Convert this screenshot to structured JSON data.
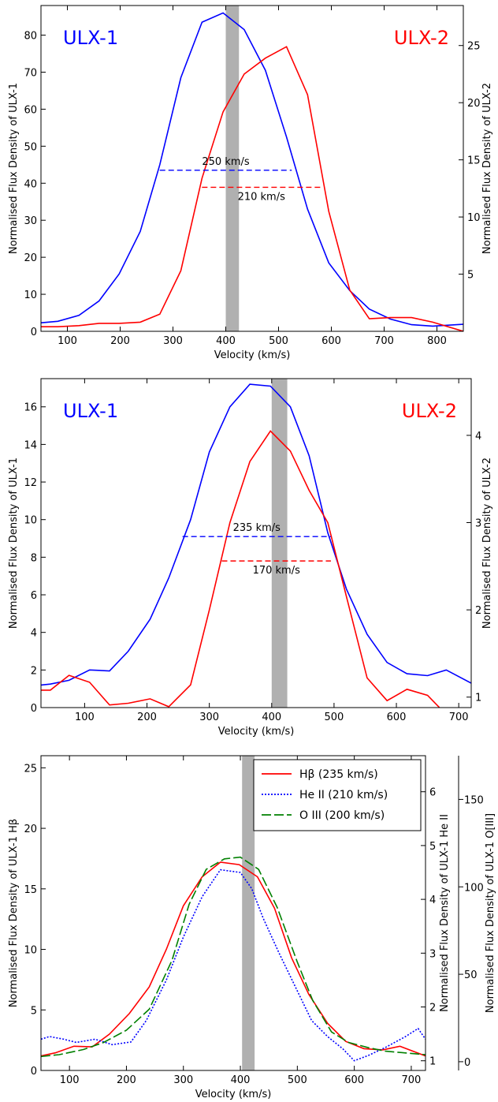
{
  "chart_data": [
    {
      "type": "line",
      "xlabel": "Velocity (km/s)",
      "ylabel_left": "Normalised Flux Density of ULX-1",
      "ylabel_right": "Normalised Flux Density of ULX-2",
      "xlim": [
        50,
        850
      ],
      "ylim_left": [
        0,
        88
      ],
      "ylim_right": [
        0,
        28.5
      ],
      "xticks": [
        "100",
        "200",
        "300",
        "400",
        "500",
        "600",
        "700",
        "800"
      ],
      "yticks_left": [
        "0",
        "10",
        "20",
        "30",
        "40",
        "50",
        "60",
        "70",
        "80"
      ],
      "yticks_right": [
        "5",
        "10",
        "15",
        "20",
        "25"
      ],
      "shaded_band": [
        400,
        425
      ],
      "grid": false,
      "labels": {
        "left_name": "ULX-1",
        "right_name": "ULX-2"
      },
      "series": [
        {
          "name": "ULX-1",
          "color": "#0000ff",
          "axis": "left",
          "x": [
            50,
            82,
            122,
            160,
            198,
            238,
            275,
            315,
            355,
            395,
            435,
            475,
            515,
            555,
            595,
            635,
            672,
            712,
            752,
            792,
            850
          ],
          "y": [
            2.3,
            2.7,
            4.3,
            8.2,
            15.5,
            27,
            45,
            68.5,
            83.5,
            86,
            81.5,
            70.5,
            52.5,
            33,
            18.5,
            11,
            6,
            3.3,
            1.8,
            1.4,
            1.9
          ]
        },
        {
          "name": "ULX-2",
          "color": "#ff0000",
          "axis": "right",
          "x": [
            50,
            82,
            122,
            160,
            198,
            238,
            275,
            315,
            355,
            395,
            435,
            475,
            515,
            555,
            595,
            635,
            672,
            712,
            752,
            792,
            850
          ],
          "y": [
            0.4,
            0.4,
            0.5,
            0.7,
            0.7,
            0.8,
            1.5,
            5.3,
            13.4,
            19.2,
            22.5,
            23.9,
            24.9,
            20.7,
            10.5,
            3.6,
            1.1,
            1.2,
            1.2,
            0.8,
            0
          ]
        }
      ],
      "fwhm": [
        {
          "label": "250 km/s",
          "color": "#0000ff",
          "axis": "left",
          "y": 43.5,
          "x": [
            275,
            525
          ]
        },
        {
          "label": "210 km/s",
          "color": "#ff0000",
          "axis": "right",
          "y": 12.6,
          "x": [
            355,
            580
          ]
        }
      ]
    },
    {
      "type": "line",
      "xlabel": "Velocity (km/s)",
      "ylabel_left": "Normalised Flux Density of ULX-1",
      "ylabel_right": "Normalised Flux Density of ULX-2",
      "xlim": [
        30,
        720
      ],
      "ylim_left": [
        0,
        17.5
      ],
      "ylim_right": [
        0.88,
        4.65
      ],
      "xticks": [
        "100",
        "200",
        "300",
        "400",
        "500",
        "600",
        "700"
      ],
      "yticks_left": [
        "0",
        "2",
        "4",
        "6",
        "8",
        "10",
        "12",
        "14",
        "16"
      ],
      "yticks_right": [
        "1",
        "2",
        "3",
        "4"
      ],
      "shaded_band": [
        400,
        425
      ],
      "grid": false,
      "labels": {
        "left_name": "ULX-1",
        "right_name": "ULX-2"
      },
      "series": [
        {
          "name": "ULX-1",
          "color": "#0000ff",
          "axis": "left",
          "x": [
            30,
            45,
            75,
            108,
            140,
            170,
            205,
            235,
            270,
            300,
            333,
            365,
            398,
            430,
            460,
            490,
            520,
            553,
            585,
            617,
            650,
            680,
            720
          ],
          "y": [
            1.2,
            1.25,
            1.45,
            2.0,
            1.95,
            3.0,
            4.7,
            6.9,
            10.0,
            13.6,
            16.0,
            17.2,
            17.1,
            16.0,
            13.4,
            9.3,
            6.3,
            3.9,
            2.4,
            1.8,
            1.7,
            2.0,
            1.3
          ]
        },
        {
          "name": "ULX-2",
          "color": "#ff0000",
          "axis": "right",
          "x": [
            30,
            45,
            75,
            108,
            140,
            170,
            205,
            235,
            270,
            300,
            333,
            365,
            398,
            430,
            460,
            490,
            520,
            553,
            585,
            617,
            650,
            680
          ],
          "y": [
            1.08,
            1.08,
            1.25,
            1.17,
            0.91,
            0.93,
            0.98,
            0.89,
            1.14,
            2.0,
            3.0,
            3.7,
            4.05,
            3.82,
            3.37,
            3.0,
            2.15,
            1.22,
            0.96,
            1.09,
            1.02,
            0.8
          ]
        }
      ],
      "fwhm": [
        {
          "label": "235 km/s",
          "color": "#0000ff",
          "axis": "left",
          "y": 9.1,
          "x": [
            257,
            495
          ]
        },
        {
          "label": "170 km/s",
          "color": "#ff0000",
          "axis": "left",
          "y": 7.8,
          "x": [
            320,
            495
          ]
        }
      ]
    },
    {
      "type": "line",
      "xlabel": "Velocity (km/s)",
      "ylabel_left": "Normalised Flux Density of ULX-1 Hβ",
      "ylabel_mid": "Normalised Flux Density of ULX-1 He II",
      "ylabel_right": "Normalised Flux Density of ULX-1 O[III]",
      "xlim": [
        50,
        725
      ],
      "ylim_left": [
        0,
        26
      ],
      "ylim_mid": [
        0.82,
        6.67
      ],
      "ylim_right": [
        -5,
        175
      ],
      "xticks": [
        "100",
        "200",
        "300",
        "400",
        "500",
        "600",
        "700"
      ],
      "yticks_left": [
        "0",
        "5",
        "10",
        "15",
        "20",
        "25"
      ],
      "yticks_mid": [
        "1",
        "2",
        "3",
        "4",
        "5",
        "6"
      ],
      "yticks_right": [
        "0",
        "50",
        "100",
        "150"
      ],
      "shaded_band": [
        403,
        425
      ],
      "grid": false,
      "legend": {
        "placement": "top-right"
      },
      "series": [
        {
          "name": "Hβ (235 km/s)",
          "color": "#ff0000",
          "style": "solid",
          "axis": "left",
          "x": [
            50,
            75,
            108,
            140,
            170,
            205,
            240,
            270,
            300,
            333,
            365,
            398,
            430,
            460,
            490,
            520,
            553,
            585,
            617,
            650,
            680,
            725
          ],
          "y": [
            1.2,
            1.45,
            2.0,
            1.95,
            3.0,
            4.7,
            6.9,
            10.0,
            13.6,
            16.0,
            17.2,
            17.0,
            16.0,
            13.4,
            9.3,
            6.3,
            3.9,
            2.4,
            1.8,
            1.7,
            2.0,
            1.2
          ]
        },
        {
          "name": "He II (210 km/s)",
          "color": "#0000ff",
          "style": "dotted",
          "axis": "mid",
          "x": [
            50,
            65,
            90,
            112,
            145,
            175,
            208,
            235,
            270,
            300,
            333,
            365,
            400,
            420,
            440,
            468,
            500,
            525,
            553,
            580,
            600,
            625,
            655,
            690,
            712,
            725
          ],
          "y": [
            1.4,
            1.45,
            1.4,
            1.34,
            1.4,
            1.3,
            1.35,
            1.75,
            2.5,
            3.3,
            4.05,
            4.55,
            4.5,
            4.2,
            3.65,
            3.0,
            2.3,
            1.75,
            1.45,
            1.22,
            1.0,
            1.1,
            1.25,
            1.45,
            1.6,
            1.4
          ]
        },
        {
          "name": "O III (200 km/s)",
          "color": "#008000",
          "style": "dashed",
          "axis": "right",
          "x": [
            50,
            82,
            125,
            160,
            200,
            240,
            280,
            310,
            340,
            372,
            400,
            432,
            465,
            500,
            527,
            560,
            590,
            625,
            655,
            690,
            725
          ],
          "y": [
            3,
            4,
            7,
            11,
            18,
            30,
            58,
            90,
            110,
            116,
            117,
            110,
            88,
            57,
            35,
            17,
            11,
            8,
            6,
            5,
            4
          ]
        }
      ]
    }
  ]
}
